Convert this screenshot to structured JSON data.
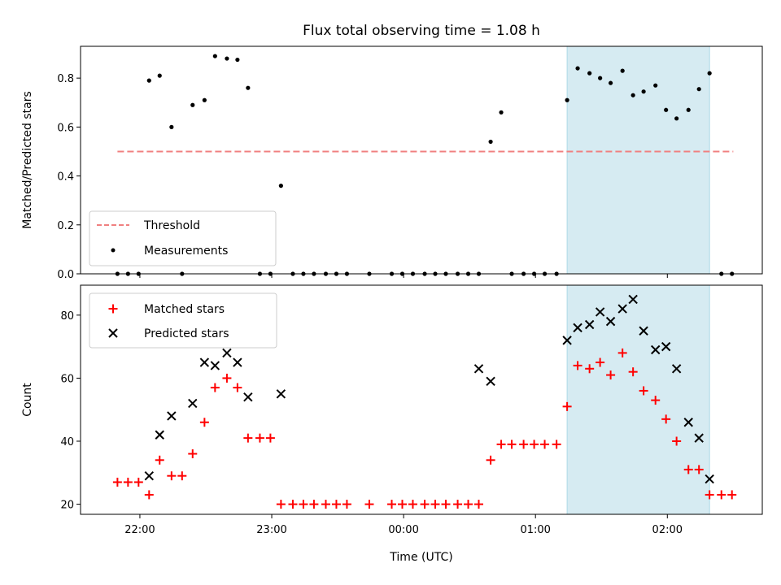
{
  "chart_data": {
    "title": "Flux total observing time = 1.08 h",
    "xlabel": "Time (UTC)",
    "x_ticks": [
      "22:00",
      "23:00",
      "00:00",
      "01:00",
      "02:00"
    ],
    "x_tick_hours": [
      22,
      23,
      24,
      25,
      26
    ],
    "xlim": [
      21.55,
      26.72
    ],
    "highlight_span": [
      25.24,
      26.32
    ],
    "colors": {
      "threshold": "#f08080",
      "measurements": "#000000",
      "matched": "#ff0000",
      "predicted": "#000000",
      "highlight": "#add8e6"
    },
    "panels": [
      {
        "type": "scatter",
        "ylabel": "Matched/Predicted stars",
        "ylim": [
          0,
          0.93
        ],
        "y_ticks": [
          0.0,
          0.2,
          0.4,
          0.6,
          0.8
        ],
        "y_tick_labels": [
          "0.0",
          "0.2",
          "0.4",
          "0.6",
          "0.8"
        ],
        "legend_position": "lower-left",
        "threshold": {
          "name": "Threshold",
          "value": 0.5,
          "x_range": [
            21.83,
            26.5
          ]
        },
        "series": [
          {
            "name": "Measurements",
            "marker": "dot",
            "x": [
              21.83,
              21.91,
              21.99,
              22.07,
              22.15,
              22.24,
              22.32,
              22.4,
              22.49,
              22.57,
              22.66,
              22.74,
              22.82,
              22.91,
              22.99,
              23.07,
              23.16,
              23.24,
              23.32,
              23.41,
              23.49,
              23.57,
              23.74,
              23.91,
              23.99,
              24.07,
              24.16,
              24.24,
              24.32,
              24.41,
              24.49,
              24.57,
              24.66,
              24.74,
              24.82,
              24.91,
              24.99,
              25.07,
              25.16,
              25.24,
              25.32,
              25.41,
              25.49,
              25.57,
              25.66,
              25.74,
              25.82,
              25.91,
              25.99,
              26.07,
              26.16,
              26.24,
              26.32,
              26.41,
              26.49
            ],
            "y": [
              0,
              0,
              0,
              0.79,
              0.81,
              0.6,
              0,
              0.69,
              0.71,
              0.89,
              0.88,
              0.875,
              0.76,
              0,
              0,
              0.36,
              0,
              0,
              0,
              0,
              0,
              0,
              0,
              0,
              0,
              0,
              0,
              0,
              0,
              0,
              0,
              0,
              0.54,
              0.66,
              0,
              0,
              0,
              0,
              0,
              0.71,
              0.84,
              0.82,
              0.8,
              0.78,
              0.83,
              0.73,
              0.745,
              0.77,
              0.67,
              0.635,
              0.67,
              0.755,
              0.82,
              0,
              0
            ]
          }
        ]
      },
      {
        "type": "scatter",
        "ylabel": "Count",
        "ylim": [
          16.8,
          89.5
        ],
        "y_ticks": [
          20,
          40,
          60,
          80
        ],
        "y_tick_labels": [
          "20",
          "40",
          "60",
          "80"
        ],
        "legend_position": "upper-left",
        "series": [
          {
            "name": "Matched stars",
            "marker": "plus",
            "x": [
              21.83,
              21.91,
              21.99,
              22.07,
              22.15,
              22.24,
              22.32,
              22.4,
              22.49,
              22.57,
              22.66,
              22.74,
              22.82,
              22.91,
              22.99,
              23.07,
              23.16,
              23.24,
              23.32,
              23.41,
              23.49,
              23.57,
              23.74,
              23.91,
              23.99,
              24.07,
              24.16,
              24.24,
              24.32,
              24.41,
              24.49,
              24.57,
              24.66,
              24.74,
              24.82,
              24.91,
              24.99,
              25.07,
              25.16,
              25.24,
              25.32,
              25.41,
              25.49,
              25.57,
              25.66,
              25.74,
              25.82,
              25.91,
              25.99,
              26.07,
              26.16,
              26.24,
              26.32,
              26.41,
              26.49
            ],
            "y": [
              27,
              27,
              27,
              23,
              34,
              29,
              29,
              36,
              46,
              57,
              60,
              57,
              41,
              41,
              41,
              20,
              20,
              20,
              20,
              20,
              20,
              20,
              20,
              20,
              20,
              20,
              20,
              20,
              20,
              20,
              20,
              20,
              34,
              39,
              39,
              39,
              39,
              39,
              39,
              51,
              64,
              63,
              65,
              61,
              68,
              62,
              56,
              53,
              47,
              40,
              31,
              31,
              23,
              23,
              23
            ]
          },
          {
            "name": "Predicted stars",
            "marker": "x",
            "x": [
              22.07,
              22.15,
              22.24,
              22.4,
              22.49,
              22.57,
              22.66,
              22.74,
              22.82,
              23.07,
              24.57,
              24.66,
              25.24,
              25.32,
              25.41,
              25.49,
              25.57,
              25.66,
              25.74,
              25.82,
              25.91,
              25.99,
              26.07,
              26.16,
              26.24,
              26.32
            ],
            "y": [
              29,
              42,
              48,
              52,
              65,
              64,
              68,
              65,
              54,
              55,
              63,
              59,
              72,
              76,
              77,
              81,
              78,
              82,
              85,
              75,
              69,
              70,
              63,
              46,
              41,
              28
            ]
          }
        ]
      }
    ]
  }
}
